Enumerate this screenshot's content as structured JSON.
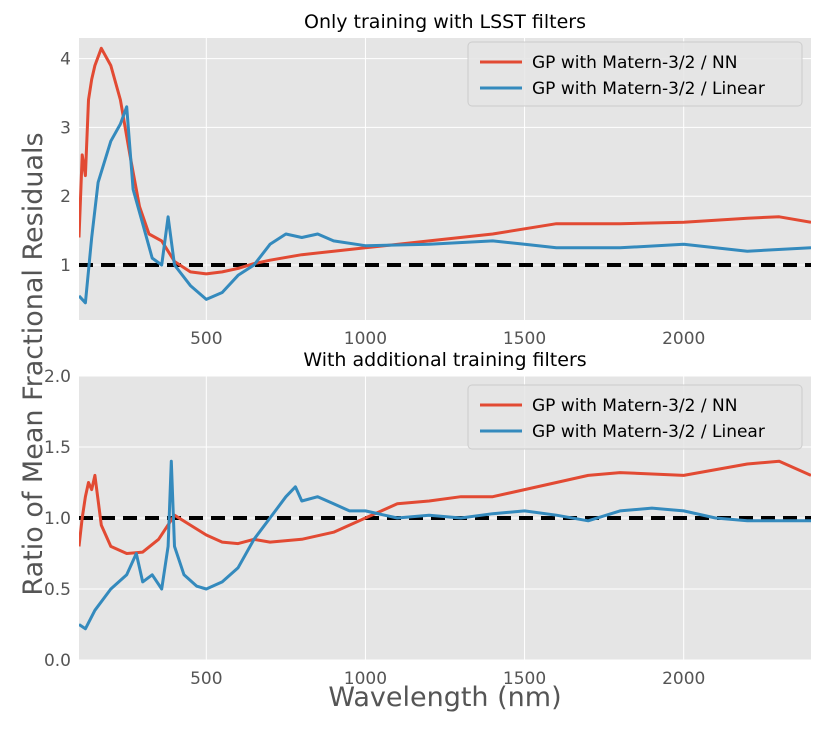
{
  "chart_data": {
    "type": "line",
    "xlabel": "Wavelength (nm)",
    "ylabel": "Ratio of Mean Fractional Residuals",
    "xlim": [
      100,
      2400
    ],
    "xticks": [
      500,
      1000,
      1500,
      2000
    ],
    "colors": {
      "nn": "#e24a33",
      "linear": "#348abd",
      "reference": "#000000"
    },
    "background": "#e5e5e5",
    "grid": true,
    "legend_position": "top-right",
    "reference_line": 1,
    "panels": [
      {
        "title": "Only training with LSST filters",
        "ylim": [
          0.2,
          4.3
        ],
        "yticks": [
          "1",
          "2",
          "3",
          "4"
        ],
        "ytick_values": [
          1,
          2,
          3,
          4
        ],
        "series": [
          {
            "name": "GP with Matern-3/2 / NN",
            "color_key": "nn",
            "x": [
              100,
              110,
              120,
              130,
              140,
              150,
              170,
              200,
              230,
              260,
              290,
              320,
              360,
              400,
              450,
              500,
              550,
              600,
              650,
              700,
              800,
              900,
              1000,
              1200,
              1400,
              1600,
              1800,
              2000,
              2200,
              2300,
              2400
            ],
            "y": [
              1.4,
              2.6,
              2.3,
              3.4,
              3.7,
              3.9,
              4.15,
              3.9,
              3.4,
              2.6,
              1.85,
              1.45,
              1.35,
              1.05,
              0.9,
              0.87,
              0.9,
              0.95,
              1.02,
              1.07,
              1.15,
              1.2,
              1.25,
              1.35,
              1.45,
              1.6,
              1.6,
              1.62,
              1.68,
              1.7,
              1.62
            ]
          },
          {
            "name": "GP with Matern-3/2 / Linear",
            "color_key": "linear",
            "x": [
              100,
              120,
              140,
              160,
              200,
              230,
              250,
              270,
              300,
              330,
              360,
              380,
              400,
              450,
              500,
              550,
              600,
              650,
              700,
              750,
              800,
              850,
              900,
              1000,
              1200,
              1400,
              1500,
              1600,
              1800,
              2000,
              2200,
              2400
            ],
            "y": [
              0.55,
              0.45,
              1.4,
              2.2,
              2.8,
              3.05,
              3.3,
              2.1,
              1.6,
              1.1,
              1.0,
              1.7,
              1.0,
              0.7,
              0.5,
              0.6,
              0.85,
              1.0,
              1.3,
              1.45,
              1.4,
              1.45,
              1.35,
              1.28,
              1.3,
              1.35,
              1.3,
              1.25,
              1.25,
              1.3,
              1.2,
              1.25
            ]
          }
        ]
      },
      {
        "title": "With additional training filters",
        "ylim": [
          0.0,
          2.0
        ],
        "yticks": [
          "0.0",
          "0.5",
          "1.0",
          "1.5",
          "2.0"
        ],
        "ytick_values": [
          0.0,
          0.5,
          1.0,
          1.5,
          2.0
        ],
        "series": [
          {
            "name": "GP with Matern-3/2 / NN",
            "color_key": "nn",
            "x": [
              100,
              110,
              120,
              130,
              140,
              150,
              170,
              200,
              250,
              300,
              350,
              400,
              450,
              500,
              550,
              600,
              650,
              700,
              800,
              900,
              1000,
              1100,
              1200,
              1300,
              1400,
              1500,
              1600,
              1700,
              1800,
              2000,
              2200,
              2300,
              2400
            ],
            "y": [
              0.8,
              1.0,
              1.15,
              1.25,
              1.2,
              1.3,
              0.95,
              0.8,
              0.75,
              0.76,
              0.85,
              1.02,
              0.95,
              0.88,
              0.83,
              0.82,
              0.85,
              0.83,
              0.85,
              0.9,
              1.0,
              1.1,
              1.12,
              1.15,
              1.15,
              1.2,
              1.25,
              1.3,
              1.32,
              1.3,
              1.38,
              1.4,
              1.3
            ]
          },
          {
            "name": "GP with Matern-3/2 / Linear",
            "color_key": "linear",
            "x": [
              100,
              120,
              150,
              200,
              250,
              280,
              300,
              330,
              360,
              380,
              390,
              400,
              430,
              470,
              500,
              550,
              600,
              650,
              700,
              750,
              780,
              800,
              850,
              900,
              950,
              1000,
              1100,
              1200,
              1300,
              1400,
              1500,
              1600,
              1700,
              1800,
              1900,
              2000,
              2100,
              2200,
              2400
            ],
            "y": [
              0.25,
              0.22,
              0.35,
              0.5,
              0.6,
              0.75,
              0.55,
              0.6,
              0.5,
              0.8,
              1.4,
              0.8,
              0.6,
              0.52,
              0.5,
              0.55,
              0.65,
              0.85,
              1.0,
              1.15,
              1.22,
              1.12,
              1.15,
              1.1,
              1.05,
              1.05,
              1.0,
              1.02,
              1.0,
              1.03,
              1.05,
              1.02,
              0.98,
              1.05,
              1.07,
              1.05,
              1.0,
              0.98,
              0.98
            ]
          }
        ]
      }
    ]
  }
}
